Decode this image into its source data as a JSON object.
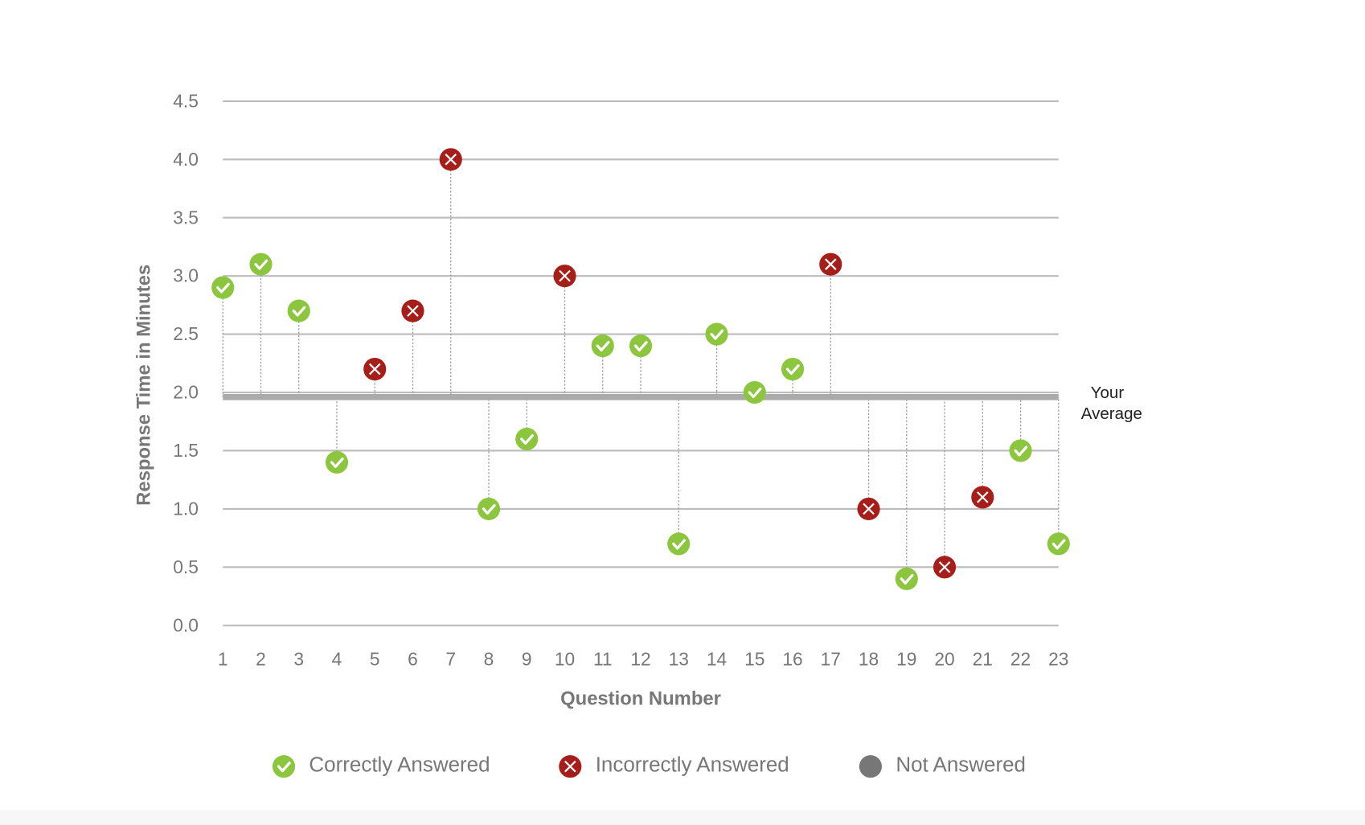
{
  "chart_data": {
    "type": "scatter",
    "title": "",
    "xlabel": "Question Number",
    "ylabel": "Response Time in Minutes",
    "ylim": [
      0,
      4.5
    ],
    "yticks": [
      "0.0",
      "0.5",
      "1.0",
      "1.5",
      "2.0",
      "2.5",
      "3.0",
      "3.5",
      "4.0",
      "4.5"
    ],
    "x": [
      1,
      2,
      3,
      4,
      5,
      6,
      7,
      8,
      9,
      10,
      11,
      12,
      13,
      14,
      15,
      16,
      17,
      18,
      19,
      20,
      21,
      22,
      23
    ],
    "values": [
      2.9,
      3.1,
      2.7,
      1.4,
      2.2,
      2.7,
      4.0,
      1.0,
      1.6,
      3.0,
      2.4,
      2.4,
      0.7,
      2.5,
      2.0,
      2.2,
      3.1,
      1.0,
      0.4,
      0.5,
      1.1,
      1.5,
      0.7
    ],
    "status": [
      "correct",
      "correct",
      "correct",
      "correct",
      "incorrect",
      "incorrect",
      "incorrect",
      "correct",
      "correct",
      "incorrect",
      "correct",
      "correct",
      "correct",
      "correct",
      "correct",
      "correct",
      "incorrect",
      "incorrect",
      "correct",
      "incorrect",
      "incorrect",
      "correct",
      "correct"
    ],
    "average": 1.96,
    "average_label_line1": "Your",
    "average_label_line2": "Average",
    "grid": true,
    "legend_position": "bottom",
    "legend": [
      {
        "key": "correct",
        "label": "Correctly Answered",
        "color": "#8cc63f",
        "icon": "check-icon"
      },
      {
        "key": "incorrect",
        "label": "Incorrectly Answered",
        "color": "#a61e1a",
        "icon": "x-icon"
      },
      {
        "key": "unanswered",
        "label": "Not Answered",
        "color": "#777777",
        "icon": "dot-icon"
      }
    ]
  }
}
